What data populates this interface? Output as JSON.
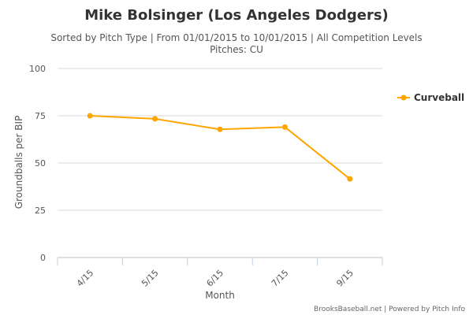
{
  "chart_data": {
    "type": "line",
    "title": "Mike Bolsinger (Los Angeles Dodgers)",
    "subtitle_line1": "Sorted by Pitch Type | From 01/01/2015 to 10/01/2015 | All Competition Levels",
    "subtitle_line2": "Pitches: CU",
    "xlabel": "Month",
    "ylabel": "Groundballs per BIP",
    "categories": [
      "4/15",
      "5/15",
      "6/15",
      "7/15",
      "9/15"
    ],
    "ylim": [
      0,
      100
    ],
    "yticks": [
      0,
      25,
      50,
      75,
      100
    ],
    "grid": true,
    "legend_position": "right",
    "series": [
      {
        "name": "Curveball",
        "color": "#FFA500",
        "values": [
          75.0,
          73.4,
          67.8,
          69.0,
          41.6
        ]
      }
    ],
    "credits": "BrooksBaseball.net | Powered by Pitch Info"
  }
}
